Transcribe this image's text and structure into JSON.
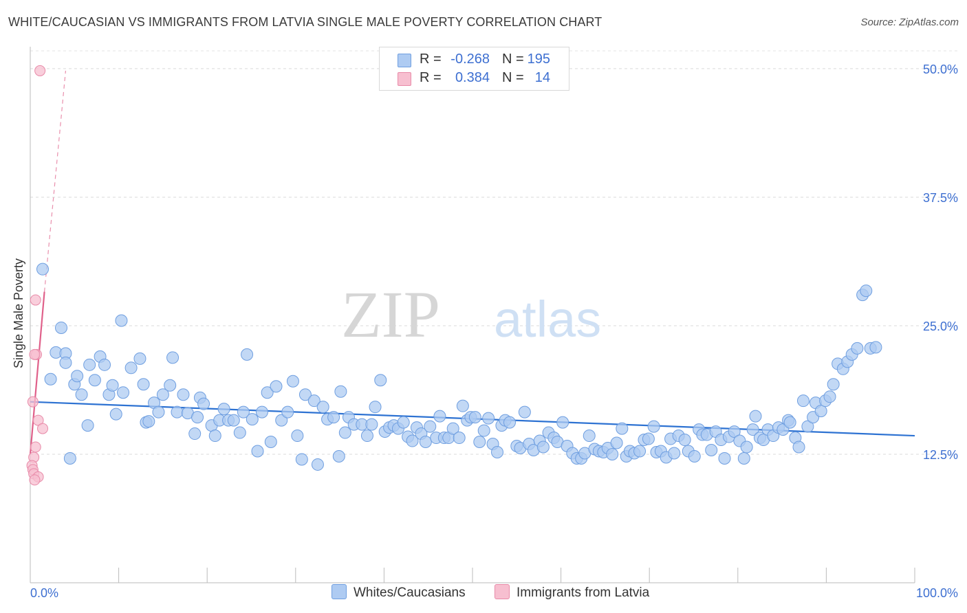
{
  "title": "WHITE/CAUCASIAN VS IMMIGRANTS FROM LATVIA SINGLE MALE POVERTY CORRELATION CHART",
  "source": "Source: ZipAtlas.com",
  "watermark": {
    "zip": "ZIP",
    "atlas": "atlas"
  },
  "stats": [
    {
      "r_label": "R =",
      "r_value": "-0.268",
      "n_label": "N =",
      "n_value": "195",
      "color": "#aecbf2",
      "border": "#6e9ee0"
    },
    {
      "r_label": "R =",
      "r_value": "0.384",
      "n_label": "N =",
      "n_value": "14",
      "color": "#f7bfd0",
      "border": "#e88aa8"
    }
  ],
  "legend": [
    {
      "label": "Whites/Caucasians",
      "color": "#aecbf2",
      "border": "#6e9ee0"
    },
    {
      "label": "Immigrants from Latvia",
      "color": "#f7bfd0",
      "border": "#e88aa8"
    }
  ],
  "chart_data": {
    "type": "scatter",
    "ylabel": "Single Male Poverty",
    "xlim": [
      0,
      100
    ],
    "ylim": [
      0,
      52
    ],
    "x_tick_labels": [
      {
        "value": 0,
        "label": "0.0%"
      },
      {
        "value": 100,
        "label": "100.0%"
      }
    ],
    "y_ticks": [
      {
        "value": 12.5,
        "label": "12.5%"
      },
      {
        "value": 25.0,
        "label": "25.0%"
      },
      {
        "value": 37.5,
        "label": "37.5%"
      },
      {
        "value": 50.0,
        "label": "50.0%"
      }
    ],
    "grid": "horizontal dashed",
    "series": [
      {
        "name": "Whites/Caucasians",
        "color": "#aecbf2",
        "stroke": "#6e9ee0",
        "trend": {
          "x": [
            0,
            100
          ],
          "y": [
            17.6,
            14.3
          ],
          "color": "#2d72d2"
        },
        "points": [
          [
            1.4,
            30.5
          ],
          [
            3.5,
            24.8
          ],
          [
            2.9,
            22.4
          ],
          [
            4.0,
            22.3
          ],
          [
            2.3,
            19.8
          ],
          [
            4.0,
            21.4
          ],
          [
            4.5,
            12.1
          ],
          [
            5.0,
            19.3
          ],
          [
            5.3,
            20.1
          ],
          [
            5.8,
            18.3
          ],
          [
            6.5,
            15.3
          ],
          [
            6.7,
            21.2
          ],
          [
            7.3,
            19.7
          ],
          [
            7.9,
            22.0
          ],
          [
            8.4,
            21.2
          ],
          [
            8.9,
            18.3
          ],
          [
            9.3,
            19.2
          ],
          [
            9.7,
            16.4
          ],
          [
            10.3,
            25.5
          ],
          [
            10.5,
            18.5
          ],
          [
            11.4,
            20.9
          ],
          [
            12.4,
            21.8
          ],
          [
            12.8,
            19.3
          ],
          [
            13.1,
            15.6
          ],
          [
            13.4,
            15.7
          ],
          [
            14.0,
            17.5
          ],
          [
            14.5,
            16.6
          ],
          [
            15.0,
            18.3
          ],
          [
            15.8,
            19.2
          ],
          [
            16.1,
            21.9
          ],
          [
            16.6,
            16.6
          ],
          [
            17.3,
            18.3
          ],
          [
            17.8,
            16.5
          ],
          [
            18.6,
            14.5
          ],
          [
            18.9,
            16.1
          ],
          [
            19.2,
            18.0
          ],
          [
            19.6,
            17.4
          ],
          [
            20.5,
            15.3
          ],
          [
            20.9,
            14.3
          ],
          [
            21.4,
            15.8
          ],
          [
            21.9,
            16.9
          ],
          [
            22.4,
            15.8
          ],
          [
            23.0,
            15.8
          ],
          [
            23.7,
            14.6
          ],
          [
            24.1,
            16.6
          ],
          [
            24.5,
            22.2
          ],
          [
            25.1,
            15.9
          ],
          [
            25.7,
            12.8
          ],
          [
            26.2,
            16.6
          ],
          [
            26.8,
            18.5
          ],
          [
            27.2,
            13.7
          ],
          [
            27.8,
            19.1
          ],
          [
            28.4,
            15.8
          ],
          [
            29.1,
            16.6
          ],
          [
            29.7,
            19.6
          ],
          [
            30.2,
            14.3
          ],
          [
            30.7,
            12.0
          ],
          [
            31.1,
            18.3
          ],
          [
            32.1,
            17.7
          ],
          [
            32.5,
            11.5
          ],
          [
            33.1,
            17.1
          ],
          [
            33.6,
            15.9
          ],
          [
            34.3,
            16.1
          ],
          [
            34.9,
            12.3
          ],
          [
            35.1,
            18.6
          ],
          [
            35.6,
            14.6
          ],
          [
            36.0,
            16.1
          ],
          [
            36.6,
            15.4
          ],
          [
            37.5,
            15.4
          ],
          [
            38.1,
            14.3
          ],
          [
            38.6,
            15.4
          ],
          [
            39.0,
            17.1
          ],
          [
            39.6,
            19.7
          ],
          [
            40.1,
            14.7
          ],
          [
            40.6,
            15.1
          ],
          [
            41.1,
            15.3
          ],
          [
            41.6,
            15.0
          ],
          [
            42.2,
            15.6
          ],
          [
            42.7,
            14.2
          ],
          [
            43.2,
            13.8
          ],
          [
            43.7,
            15.1
          ],
          [
            44.2,
            14.5
          ],
          [
            44.7,
            13.7
          ],
          [
            45.2,
            15.2
          ],
          [
            45.9,
            14.1
          ],
          [
            46.3,
            16.2
          ],
          [
            46.8,
            14.1
          ],
          [
            47.3,
            14.1
          ],
          [
            47.8,
            15.0
          ],
          [
            48.5,
            14.1
          ],
          [
            48.9,
            17.2
          ],
          [
            49.4,
            15.8
          ],
          [
            49.8,
            16.1
          ],
          [
            50.3,
            16.1
          ],
          [
            50.8,
            13.7
          ],
          [
            51.3,
            14.8
          ],
          [
            51.8,
            16.0
          ],
          [
            52.3,
            13.5
          ],
          [
            52.8,
            12.7
          ],
          [
            53.3,
            15.3
          ],
          [
            53.7,
            15.8
          ],
          [
            54.2,
            15.6
          ],
          [
            55.0,
            13.3
          ],
          [
            55.4,
            13.1
          ],
          [
            55.9,
            16.6
          ],
          [
            56.4,
            13.5
          ],
          [
            56.9,
            12.9
          ],
          [
            57.6,
            13.8
          ],
          [
            58.0,
            13.2
          ],
          [
            58.6,
            14.6
          ],
          [
            59.2,
            14.1
          ],
          [
            59.6,
            13.7
          ],
          [
            60.2,
            15.6
          ],
          [
            60.7,
            13.3
          ],
          [
            61.3,
            12.6
          ],
          [
            61.8,
            12.1
          ],
          [
            62.3,
            12.1
          ],
          [
            62.7,
            12.6
          ],
          [
            63.2,
            14.3
          ],
          [
            63.8,
            13.0
          ],
          [
            64.3,
            12.8
          ],
          [
            64.8,
            12.7
          ],
          [
            65.3,
            13.1
          ],
          [
            65.8,
            12.5
          ],
          [
            66.3,
            13.6
          ],
          [
            66.9,
            15.0
          ],
          [
            67.4,
            12.3
          ],
          [
            67.8,
            12.8
          ],
          [
            68.3,
            12.6
          ],
          [
            68.9,
            12.8
          ],
          [
            69.4,
            13.9
          ],
          [
            69.9,
            14.0
          ],
          [
            70.5,
            15.2
          ],
          [
            70.8,
            12.7
          ],
          [
            71.3,
            12.8
          ],
          [
            71.9,
            12.2
          ],
          [
            72.4,
            14.0
          ],
          [
            72.8,
            12.6
          ],
          [
            73.3,
            14.3
          ],
          [
            74.0,
            13.9
          ],
          [
            74.4,
            12.8
          ],
          [
            75.1,
            12.3
          ],
          [
            75.6,
            14.9
          ],
          [
            76.0,
            14.4
          ],
          [
            76.5,
            14.4
          ],
          [
            77.0,
            12.9
          ],
          [
            77.5,
            14.7
          ],
          [
            78.1,
            13.9
          ],
          [
            78.5,
            12.1
          ],
          [
            79.0,
            14.2
          ],
          [
            79.6,
            14.7
          ],
          [
            80.2,
            13.8
          ],
          [
            80.7,
            12.1
          ],
          [
            81.0,
            13.2
          ],
          [
            81.7,
            14.9
          ],
          [
            82.0,
            16.2
          ],
          [
            82.5,
            14.1
          ],
          [
            82.9,
            13.9
          ],
          [
            83.4,
            14.9
          ],
          [
            84.0,
            14.3
          ],
          [
            84.6,
            15.1
          ],
          [
            85.1,
            14.9
          ],
          [
            85.7,
            15.8
          ],
          [
            85.9,
            15.6
          ],
          [
            86.5,
            14.1
          ],
          [
            86.9,
            13.2
          ],
          [
            87.4,
            17.7
          ],
          [
            87.9,
            15.2
          ],
          [
            88.5,
            16.1
          ],
          [
            88.8,
            17.5
          ],
          [
            89.4,
            16.7
          ],
          [
            89.9,
            17.7
          ],
          [
            90.4,
            18.1
          ],
          [
            90.8,
            19.3
          ],
          [
            91.3,
            21.3
          ],
          [
            91.9,
            20.8
          ],
          [
            92.4,
            21.5
          ],
          [
            92.9,
            22.2
          ],
          [
            93.5,
            22.8
          ],
          [
            94.1,
            28.0
          ],
          [
            94.5,
            28.4
          ],
          [
            95.0,
            22.8
          ],
          [
            95.6,
            22.9
          ]
        ]
      },
      {
        "name": "Immigrants from Latvia",
        "color": "#f7bfd0",
        "stroke": "#e88aa8",
        "trend": {
          "x": [
            0,
            1.6
          ],
          "y": [
            12.5,
            28.3
          ],
          "color": "#e0608a",
          "dashed_to": {
            "x": 4.0,
            "y": 49.8
          }
        },
        "points": [
          [
            1.1,
            49.8
          ],
          [
            0.6,
            27.5
          ],
          [
            0.7,
            22.2
          ],
          [
            0.5,
            22.2
          ],
          [
            0.3,
            17.6
          ],
          [
            0.9,
            15.8
          ],
          [
            1.4,
            15.0
          ],
          [
            0.6,
            13.2
          ],
          [
            0.4,
            12.2
          ],
          [
            0.2,
            11.4
          ],
          [
            0.3,
            11.0
          ],
          [
            0.4,
            10.6
          ],
          [
            0.9,
            10.3
          ],
          [
            0.5,
            10.0
          ]
        ]
      }
    ]
  }
}
